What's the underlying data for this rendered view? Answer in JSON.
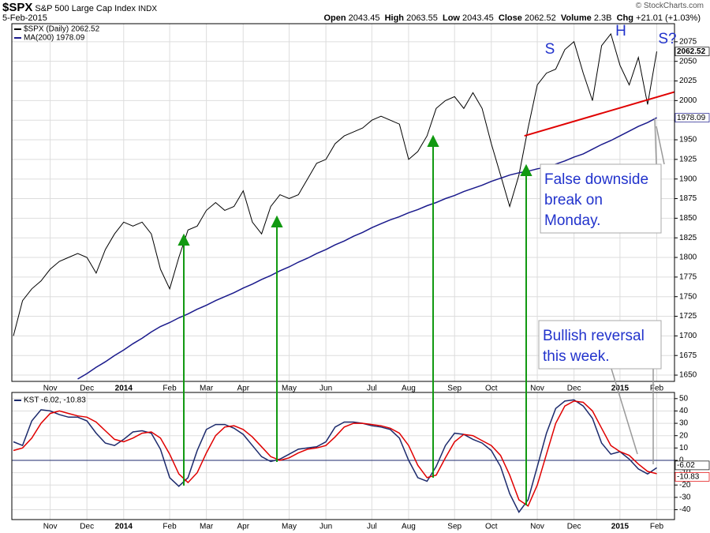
{
  "header": {
    "symbol": "$SPX",
    "name": "S&P 500 Large Cap Index",
    "exchange": "INDX",
    "date": "5-Feb-2015",
    "source": "© StockCharts.com",
    "quote": [
      {
        "label": "Open",
        "value": "2043.45"
      },
      {
        "label": "High",
        "value": "2063.55"
      },
      {
        "label": "Low",
        "value": "2043.45"
      },
      {
        "label": "Close",
        "value": "2062.52"
      },
      {
        "label": "Volume",
        "value": "2.3B"
      },
      {
        "label": "Chg",
        "value": "+21.01 (+1.03%)"
      }
    ]
  },
  "annotations": {
    "pattern": [
      "S",
      "H",
      "S?"
    ],
    "false_break": [
      "False downside",
      "break on",
      "Monday."
    ],
    "bullish": [
      "Bullish reversal",
      "this week."
    ]
  },
  "chart_data": [
    {
      "type": "line",
      "categories": [
        null,
        null,
        null,
        null,
        "Nov",
        null,
        null,
        null,
        "Dec",
        null,
        null,
        null,
        "2014",
        null,
        null,
        null,
        null,
        "Feb",
        null,
        null,
        null,
        "Mar",
        null,
        null,
        null,
        "Apr",
        null,
        null,
        null,
        null,
        "May",
        null,
        null,
        null,
        "Jun",
        null,
        null,
        null,
        null,
        "Jul",
        null,
        null,
        null,
        "Aug",
        null,
        null,
        null,
        null,
        "Sep",
        null,
        null,
        null,
        "Oct",
        null,
        null,
        null,
        null,
        "Nov",
        null,
        null,
        null,
        "Dec",
        null,
        null,
        null,
        null,
        "2015",
        null,
        null,
        null,
        "Feb"
      ],
      "series": [
        {
          "name": "$SPX (Daily) 2062.52",
          "color": "#000000",
          "values": [
            1700,
            1745,
            1760,
            1770,
            1785,
            1795,
            1800,
            1805,
            1800,
            1780,
            1810,
            1830,
            1845,
            1840,
            1845,
            1830,
            1785,
            1760,
            1800,
            1835,
            1840,
            1860,
            1870,
            1860,
            1865,
            1885,
            1845,
            1830,
            1865,
            1880,
            1875,
            1880,
            1900,
            1920,
            1925,
            1945,
            1955,
            1960,
            1965,
            1975,
            1980,
            1975,
            1970,
            1925,
            1935,
            1955,
            1990,
            2000,
            2005,
            1990,
            2010,
            1990,
            1945,
            1905,
            1865,
            1905,
            1965,
            2020,
            2035,
            2040,
            2065,
            2075,
            2035,
            2000,
            2070,
            2085,
            2045,
            2020,
            2055,
            1995,
            2062.52
          ]
        },
        {
          "name": "MA(200) 1978.09",
          "color": "#1a1a8c",
          "values": [
            null,
            null,
            null,
            null,
            null,
            null,
            null,
            1645,
            1652,
            1660,
            1667,
            1675,
            1682,
            1690,
            1697,
            1705,
            1712,
            1717,
            1723,
            1728,
            1734,
            1739,
            1745,
            1750,
            1755,
            1761,
            1766,
            1772,
            1777,
            1783,
            1788,
            1794,
            1799,
            1805,
            1810,
            1816,
            1821,
            1827,
            1832,
            1838,
            1843,
            1848,
            1852,
            1857,
            1861,
            1866,
            1870,
            1875,
            1879,
            1884,
            1888,
            1892,
            1897,
            1901,
            1905,
            1908,
            1910,
            1913,
            1915,
            1919,
            1923,
            1928,
            1932,
            1938,
            1944,
            1949,
            1955,
            1961,
            1967,
            1972,
            1978.09
          ]
        }
      ],
      "trendline": {
        "color": "#e00000",
        "x": [
          55.6,
          72
        ],
        "values": [
          1955,
          2011
        ]
      },
      "ylim": [
        1642,
        2098
      ],
      "yticks": [
        1650,
        1675,
        1700,
        1725,
        1750,
        1775,
        1800,
        1825,
        1850,
        1875,
        1900,
        1925,
        1950,
        1975,
        2000,
        2025,
        2050,
        2075
      ],
      "grid": true,
      "value_boxes": true
    },
    {
      "type": "line",
      "legend": "KST -6.02, -10.83",
      "categories": [
        null,
        null,
        null,
        null,
        "Nov",
        null,
        null,
        null,
        "Dec",
        null,
        null,
        null,
        "2014",
        null,
        null,
        null,
        null,
        "Feb",
        null,
        null,
        null,
        "Mar",
        null,
        null,
        null,
        "Apr",
        null,
        null,
        null,
        null,
        "May",
        null,
        null,
        null,
        "Jun",
        null,
        null,
        null,
        null,
        "Jul",
        null,
        null,
        null,
        "Aug",
        null,
        null,
        null,
        null,
        "Sep",
        null,
        null,
        null,
        "Oct",
        null,
        null,
        null,
        null,
        "Nov",
        null,
        null,
        null,
        "Dec",
        null,
        null,
        null,
        null,
        "2015",
        null,
        null,
        null,
        "Feb"
      ],
      "series": [
        {
          "color": "#1c2a6c",
          "values": [
            15,
            12,
            32,
            41,
            40,
            37,
            35,
            35,
            32,
            22,
            14,
            12,
            17,
            23,
            24,
            22,
            9,
            -14,
            -21,
            -14,
            8,
            25,
            29,
            29,
            26,
            21,
            12,
            3,
            -1,
            1,
            5,
            9,
            10,
            11,
            15,
            27,
            31,
            31,
            30,
            28,
            27,
            25,
            18,
            0,
            -14,
            -17,
            -5,
            12,
            22,
            21,
            17,
            14,
            8,
            -5,
            -27,
            -42,
            -32,
            -5,
            22,
            42,
            48,
            49,
            44,
            34,
            14,
            5,
            7,
            1,
            -7,
            -11,
            -6.02
          ]
        },
        {
          "color": "#e00000",
          "values": [
            8,
            10,
            18,
            30,
            38,
            40,
            38,
            36,
            35,
            31,
            24,
            17,
            15,
            18,
            22,
            23,
            18,
            5,
            -11,
            -18,
            -10,
            6,
            20,
            27,
            28,
            25,
            19,
            11,
            3,
            0,
            2,
            6,
            9,
            10,
            12,
            19,
            27,
            30,
            30,
            29,
            28,
            26,
            22,
            12,
            -4,
            -14,
            -12,
            2,
            15,
            21,
            20,
            16,
            12,
            4,
            -12,
            -32,
            -37,
            -20,
            5,
            30,
            44,
            48,
            47,
            40,
            26,
            12,
            7,
            4,
            -3,
            -9,
            -10.83
          ]
        }
      ],
      "ylim": [
        -48,
        55
      ],
      "yticks": [
        -40,
        -30,
        -20,
        -10,
        0,
        10,
        20,
        30,
        40,
        50
      ],
      "grid": true,
      "hline": 0,
      "value_boxes": true
    }
  ]
}
